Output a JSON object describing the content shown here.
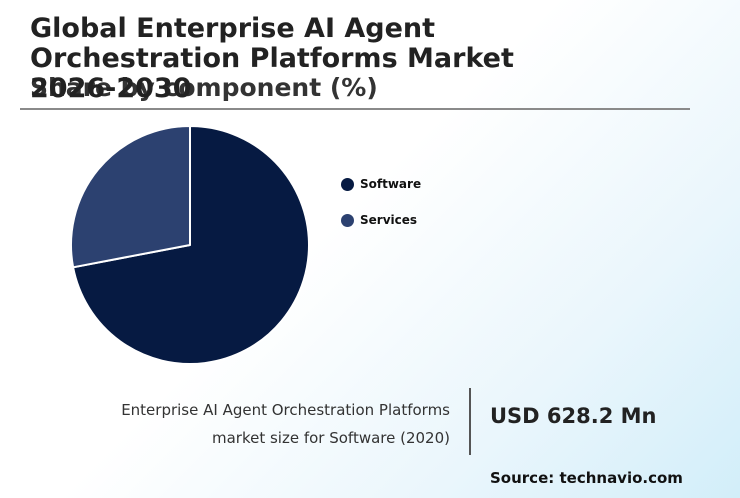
{
  "header": {
    "title": "Global Enterprise AI Agent Orchestration Platforms Market 2026-2030",
    "subtitle": "Share by component (%)"
  },
  "chart_data": {
    "type": "pie",
    "categories": [
      "Software",
      "Services"
    ],
    "values": [
      72,
      28
    ],
    "colors": [
      "#061a42",
      "#2c4170"
    ],
    "legend_position": "right",
    "start_angle": "top",
    "direction": "clockwise"
  },
  "legend": {
    "items": [
      {
        "label": "Software",
        "color": "#061a42"
      },
      {
        "label": "Services",
        "color": "#2c4170"
      }
    ]
  },
  "footer": {
    "description_line1": "Enterprise AI Agent Orchestration Platforms",
    "description_line2": "market size for Software (2020)",
    "value": "USD 628.2 Mn",
    "source": "Source: technavio.com"
  }
}
